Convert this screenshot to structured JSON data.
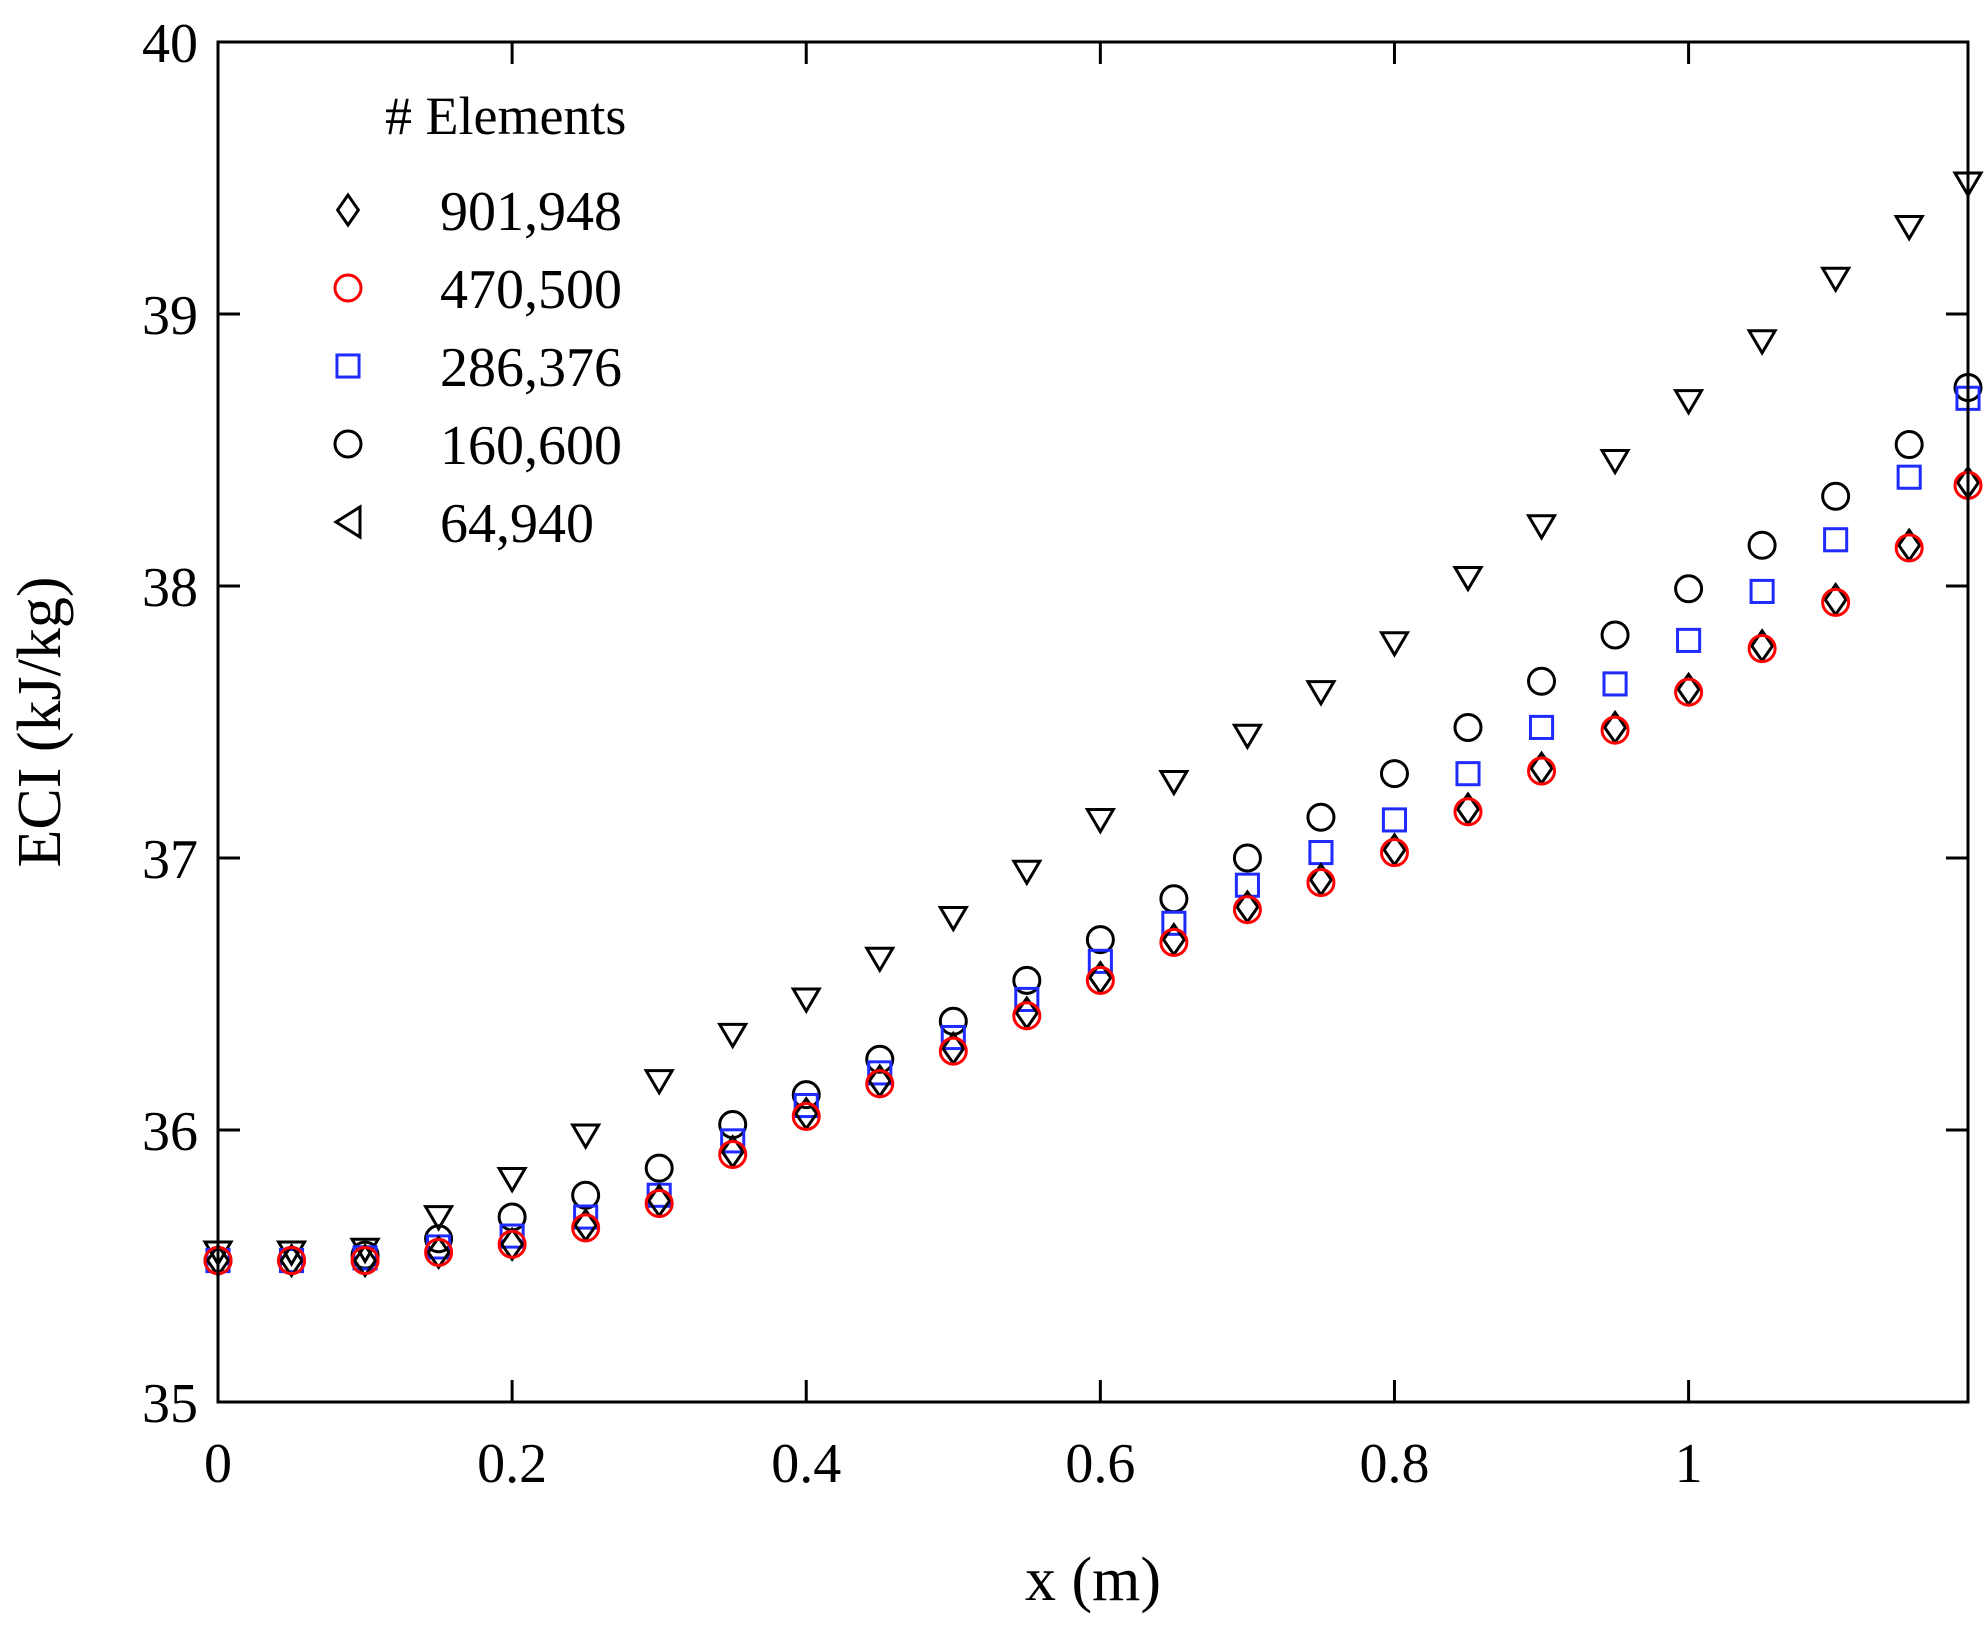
{
  "chart_data": {
    "type": "scatter",
    "title": "",
    "xlabel": "x (m)",
    "ylabel": "ECI (kJ/kg)",
    "xlim": [
      0,
      1.19
    ],
    "ylim": [
      35,
      40
    ],
    "xticks": [
      0,
      0.2,
      0.4,
      0.6,
      0.8,
      1
    ],
    "xtick_labels": [
      "0",
      "0.2",
      "0.4",
      "0.6",
      "0.8",
      "1"
    ],
    "yticks": [
      35,
      36,
      37,
      38,
      39,
      40
    ],
    "ytick_labels": [
      "35",
      "36",
      "37",
      "38",
      "39",
      "40"
    ],
    "grid": false,
    "legend": {
      "title": "# Elements",
      "placement": "top-left"
    },
    "series": [
      {
        "name": "901,948",
        "marker": "diamond",
        "color": "#000000",
        "x": [
          0,
          0.05,
          0.1,
          0.15,
          0.2,
          0.25,
          0.3,
          0.35,
          0.4,
          0.45,
          0.5,
          0.55,
          0.6,
          0.65,
          0.7,
          0.75,
          0.8,
          0.85,
          0.9,
          0.95,
          1.0,
          1.05,
          1.1,
          1.15,
          1.19
        ],
        "y": [
          35.52,
          35.52,
          35.52,
          35.55,
          35.58,
          35.65,
          35.74,
          35.92,
          36.06,
          36.18,
          36.3,
          36.43,
          36.56,
          36.7,
          36.82,
          36.92,
          37.03,
          37.18,
          37.33,
          37.48,
          37.62,
          37.78,
          37.95,
          38.15,
          38.38
        ]
      },
      {
        "name": "470,500",
        "marker": "circle",
        "color": "#ff0000",
        "x": [
          0,
          0.05,
          0.1,
          0.15,
          0.2,
          0.25,
          0.3,
          0.35,
          0.4,
          0.45,
          0.5,
          0.55,
          0.6,
          0.65,
          0.7,
          0.75,
          0.8,
          0.85,
          0.9,
          0.95,
          1.0,
          1.05,
          1.1,
          1.15,
          1.19
        ],
        "y": [
          35.52,
          35.52,
          35.52,
          35.55,
          35.58,
          35.64,
          35.73,
          35.91,
          36.05,
          36.17,
          36.29,
          36.42,
          36.55,
          36.69,
          36.81,
          36.91,
          37.02,
          37.17,
          37.32,
          37.47,
          37.61,
          37.77,
          37.94,
          38.14,
          38.37
        ]
      },
      {
        "name": "286,376",
        "marker": "square",
        "color": "#1f2bff",
        "x": [
          0,
          0.05,
          0.1,
          0.15,
          0.2,
          0.25,
          0.3,
          0.35,
          0.4,
          0.45,
          0.5,
          0.55,
          0.6,
          0.65,
          0.7,
          0.75,
          0.8,
          0.85,
          0.9,
          0.95,
          1.0,
          1.05,
          1.1,
          1.15,
          1.19
        ],
        "y": [
          35.52,
          35.52,
          35.53,
          35.57,
          35.61,
          35.68,
          35.76,
          35.96,
          36.09,
          36.21,
          36.34,
          36.48,
          36.62,
          36.76,
          36.9,
          37.02,
          37.14,
          37.31,
          37.48,
          37.64,
          37.8,
          37.98,
          38.17,
          38.4,
          38.69
        ]
      },
      {
        "name": "160,600",
        "marker": "circle",
        "color": "#000000",
        "x": [
          0,
          0.05,
          0.1,
          0.15,
          0.2,
          0.25,
          0.3,
          0.35,
          0.4,
          0.45,
          0.5,
          0.55,
          0.6,
          0.65,
          0.7,
          0.75,
          0.8,
          0.85,
          0.9,
          0.95,
          1.0,
          1.05,
          1.1,
          1.15,
          1.19
        ],
        "y": [
          35.52,
          35.52,
          35.54,
          35.6,
          35.68,
          35.76,
          35.86,
          36.02,
          36.13,
          36.26,
          36.4,
          36.55,
          36.7,
          36.85,
          37.0,
          37.15,
          37.31,
          37.48,
          37.65,
          37.82,
          37.99,
          38.15,
          38.33,
          38.52,
          38.73
        ]
      },
      {
        "name": "64,940",
        "marker": "triangle",
        "color": "#000000",
        "x": [
          0,
          0.05,
          0.1,
          0.15,
          0.2,
          0.25,
          0.3,
          0.35,
          0.4,
          0.45,
          0.5,
          0.55,
          0.6,
          0.65,
          0.7,
          0.75,
          0.8,
          0.85,
          0.9,
          0.95,
          1.0,
          1.05,
          1.1,
          1.15,
          1.19
        ],
        "y": [
          35.55,
          35.55,
          35.56,
          35.68,
          35.82,
          35.98,
          36.18,
          36.35,
          36.48,
          36.63,
          36.78,
          36.95,
          37.14,
          37.28,
          37.45,
          37.61,
          37.79,
          38.03,
          38.22,
          38.46,
          38.68,
          38.9,
          39.13,
          39.32,
          39.48
        ]
      }
    ]
  }
}
